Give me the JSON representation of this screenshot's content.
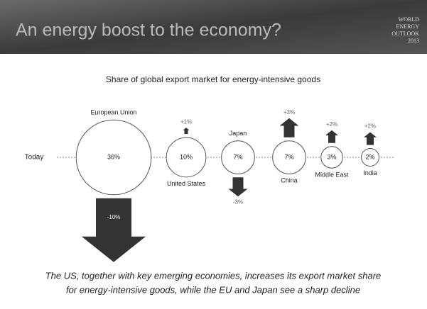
{
  "chart_data": {
    "type": "bubble",
    "title": "An energy boost to the economy?",
    "logo": [
      "WORLD",
      "ENERGY",
      "OUTLOOK",
      "2013"
    ],
    "subtitle": "Share of global export market for energy-intensive goods",
    "row_label": "Today",
    "categories": [
      "European Union",
      "United States",
      "Japan",
      "China",
      "Middle East",
      "India"
    ],
    "values": [
      36,
      10,
      7,
      7,
      3,
      2
    ],
    "value_labels": [
      "36%",
      "10%",
      "7%",
      "7%",
      "3%",
      "2%"
    ],
    "changes": [
      -10,
      1,
      -3,
      3,
      2,
      2
    ],
    "change_labels": [
      "-10%",
      "+1%",
      "-3%",
      "+3%",
      "+2%",
      "+2%"
    ],
    "color": "#333333",
    "caption": [
      "The US, together with key emerging economies, increases its export market share",
      "for energy-intensive goods, while the EU and Japan see a sharp decline"
    ]
  }
}
